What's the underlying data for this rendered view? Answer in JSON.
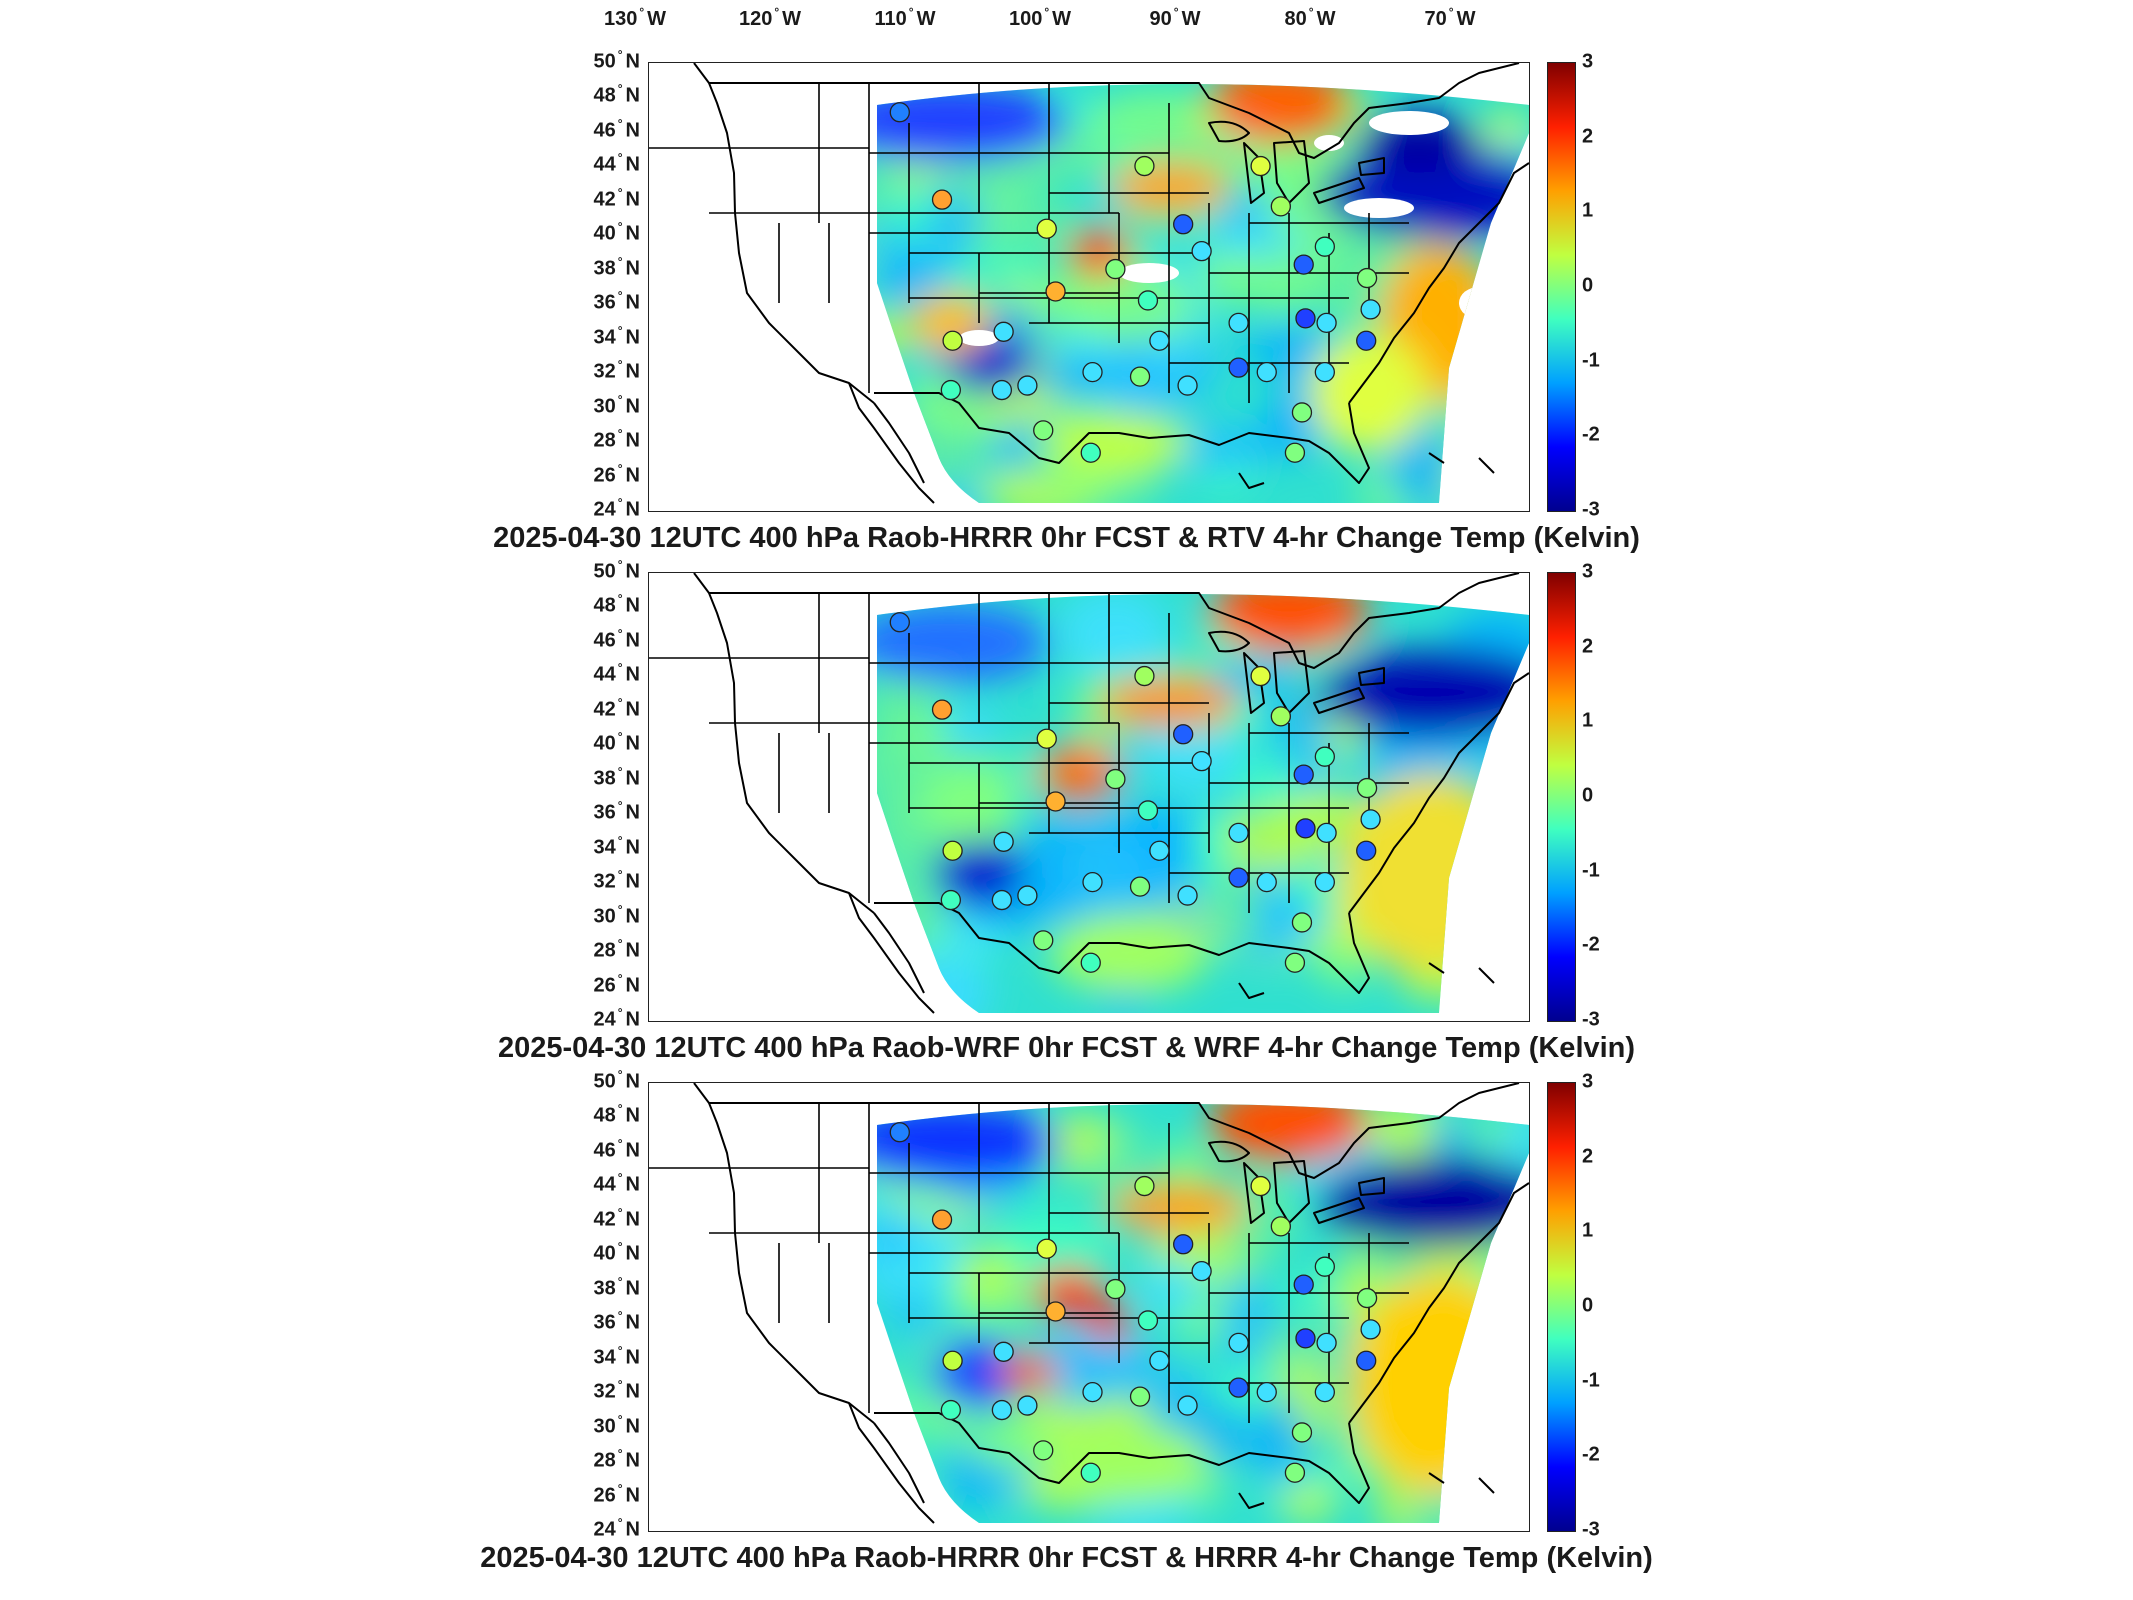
{
  "longitude_labels": [
    {
      "value": "130",
      "hemi": "W"
    },
    {
      "value": "120",
      "hemi": "W"
    },
    {
      "value": "110",
      "hemi": "W"
    },
    {
      "value": "100",
      "hemi": "W"
    },
    {
      "value": "90",
      "hemi": "W"
    },
    {
      "value": "80",
      "hemi": "W"
    },
    {
      "value": "70",
      "hemi": "W"
    }
  ],
  "latitude_labels": [
    "50",
    "48",
    "46",
    "44",
    "42",
    "40",
    "38",
    "36",
    "34",
    "32",
    "30",
    "28",
    "26",
    "24"
  ],
  "latitude_hemi": "N",
  "degree_symbol": "°",
  "colorbar": {
    "ticks": [
      "3",
      "2",
      "1",
      "0",
      "-1",
      "-2",
      "-3"
    ],
    "colormap": "jet",
    "range": [
      -3,
      3
    ],
    "colors": [
      "#00008f",
      "#0000ff",
      "#00a0ff",
      "#40ffbf",
      "#c0ff40",
      "#ffa000",
      "#ff2000",
      "#800000"
    ]
  },
  "panels": [
    {
      "caption": "2025-04-30 12UTC 400 hPa Raob-HRRR 0hr FCST & RTV 4-hr Change Temp (Kelvin)"
    },
    {
      "caption": "2025-04-30 12UTC 400 hPa Raob-WRF 0hr FCST & WRF 4-hr Change Temp (Kelvin)"
    },
    {
      "caption": "2025-04-30 12UTC 400 hPa Raob-HRRR 0hr FCST & HRRR 4-hr Change Temp (Kelvin)"
    }
  ]
}
